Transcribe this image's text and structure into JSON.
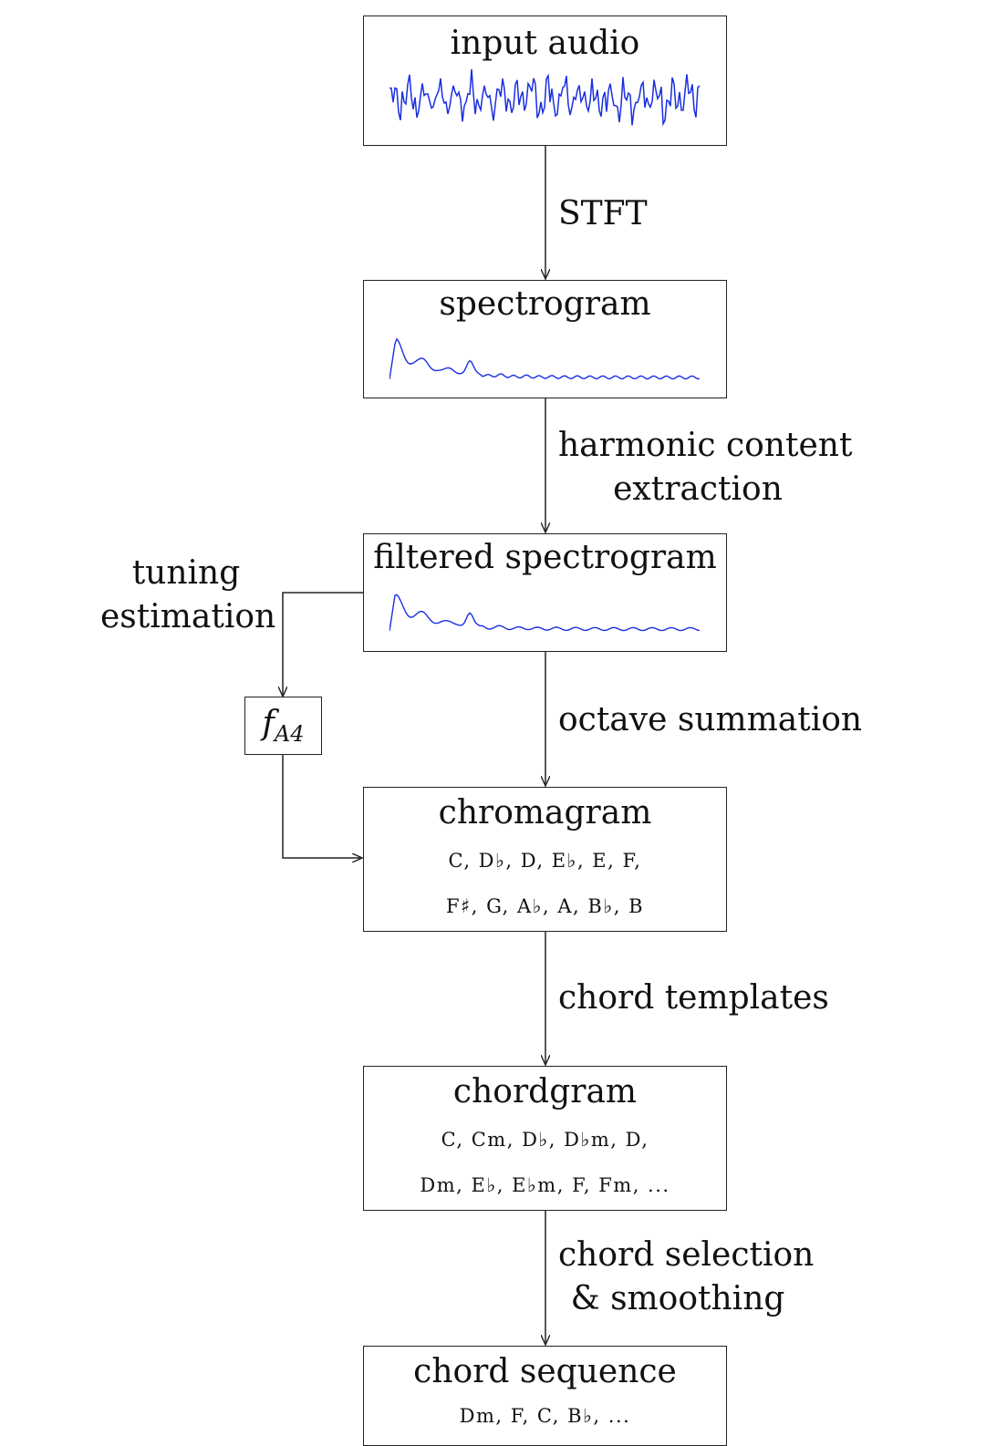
{
  "nodes": {
    "input_audio": {
      "title": "input audio"
    },
    "spectrogram": {
      "title": "spectrogram"
    },
    "filtered_spectrogram": {
      "title": "filtered spectrogram"
    },
    "tuning_param": {
      "symbol": "f",
      "subscript": "A4"
    },
    "chromagram": {
      "title": "chromagram",
      "line1": "C,  D♭,  D,  E♭,  E,  F,",
      "line2": "F♯,  G,  A♭,  A,  B♭,  B"
    },
    "chordgram": {
      "title": "chordgram",
      "line1": "C,  Cm,  D♭,  D♭m,  D,",
      "line2": "Dm,  E♭,  E♭m,  F,  Fm,  ..."
    },
    "chord_sequence": {
      "title": "chord sequence",
      "line1": "Dm,  F,  C,  B♭,  ..."
    }
  },
  "edges": {
    "stft": "STFT",
    "harmonic_line1": "harmonic content",
    "harmonic_line2": "extraction",
    "tuning_line1": "tuning",
    "tuning_line2": "estimation",
    "octave": "octave summation",
    "templates": "chord templates",
    "selection_line1": "chord selection",
    "selection_line2": "& smoothing"
  },
  "colors": {
    "waveform": "#1a2fe0",
    "line": "#222222"
  }
}
